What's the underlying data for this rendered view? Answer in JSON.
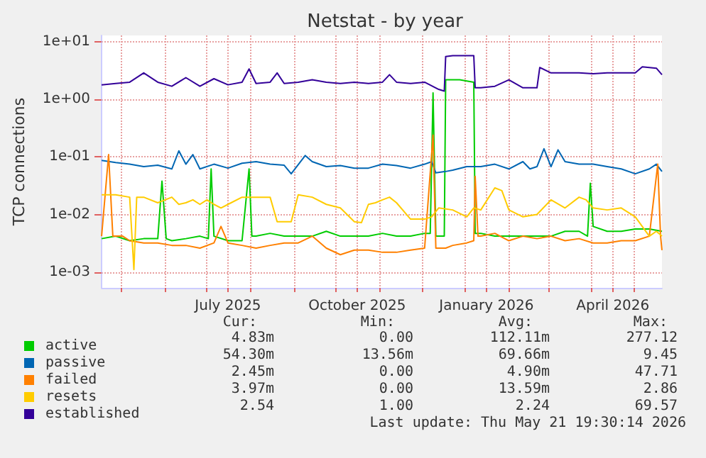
{
  "chart_data": {
    "type": "line",
    "title": "Netstat - by year",
    "ylabel": "TCP connections",
    "log": "y",
    "grid": true,
    "legend": "bottom left",
    "marker": "none",
    "line_style": "solid",
    "xlim": [
      "2025-04-17",
      "2026-05-21"
    ],
    "xticks": [
      {
        "value": "2025-05-01",
        "label": null
      },
      {
        "value": "2025-06-01",
        "label": null
      },
      {
        "value": "2025-07-01",
        "label": null
      },
      {
        "value": "2025-07-16",
        "label": "July 2025"
      },
      {
        "value": "2025-08-01",
        "label": null
      },
      {
        "value": "2025-09-01",
        "label": null
      },
      {
        "value": "2025-10-01",
        "label": null
      },
      {
        "value": "2025-10-16",
        "label": "October 2025"
      },
      {
        "value": "2025-11-01",
        "label": null
      },
      {
        "value": "2025-12-01",
        "label": null
      },
      {
        "value": "2026-01-01",
        "label": null
      },
      {
        "value": "2026-01-16",
        "label": "January 2026"
      },
      {
        "value": "2026-02-01",
        "label": null
      },
      {
        "value": "2026-03-01",
        "label": null
      },
      {
        "value": "2026-04-01",
        "label": null
      },
      {
        "value": "2026-04-16",
        "label": "April 2026"
      },
      {
        "value": "2026-05-01",
        "label": null
      }
    ],
    "ylim": [
      0.00053,
      13
    ],
    "yticks": [
      {
        "value": 0.001,
        "label": "1e-03"
      },
      {
        "value": 0.01,
        "label": "1e-02"
      },
      {
        "value": 0.1,
        "label": "1e-01"
      },
      {
        "value": 1,
        "label": "1e+00"
      },
      {
        "value": 10,
        "label": "1e+01"
      }
    ],
    "series": [
      {
        "name": "active",
        "color": "#00cc00",
        "x": [
          "2025-04-17",
          "2025-04-27",
          "2025-05-07",
          "2025-05-17",
          "2025-05-27",
          "2025-05-30",
          "2025-06-02",
          "2025-06-06",
          "2025-06-16",
          "2025-06-26",
          "2025-07-02",
          "2025-07-04",
          "2025-07-06",
          "2025-07-16",
          "2025-07-26",
          "2025-07-31",
          "2025-08-02",
          "2025-08-05",
          "2025-08-15",
          "2025-08-25",
          "2025-09-04",
          "2025-09-14",
          "2025-09-24",
          "2025-10-04",
          "2025-10-14",
          "2025-10-24",
          "2025-11-03",
          "2025-11-13",
          "2025-11-23",
          "2025-12-03",
          "2025-12-07",
          "2025-12-09",
          "2025-12-11",
          "2025-12-17",
          "2025-12-18",
          "2025-12-28",
          "2026-01-07",
          "2026-01-08",
          "2026-01-12",
          "2026-01-22",
          "2026-02-01",
          "2026-02-11",
          "2026-02-21",
          "2026-03-03",
          "2026-03-13",
          "2026-03-23",
          "2026-03-29",
          "2026-03-31",
          "2026-04-02",
          "2026-04-12",
          "2026-04-22",
          "2026-05-02",
          "2026-05-12",
          "2026-05-21"
        ],
        "values": [
          0.0038,
          0.0042,
          0.0035,
          0.0038,
          0.0038,
          0.038,
          0.0038,
          0.0035,
          0.0038,
          0.0042,
          0.0038,
          0.062,
          0.0042,
          0.0035,
          0.0035,
          0.062,
          0.0042,
          0.0042,
          0.0047,
          0.0042,
          0.0042,
          0.0042,
          0.0051,
          0.0042,
          0.0042,
          0.0042,
          0.0047,
          0.0042,
          0.0042,
          0.0047,
          0.0047,
          1.3,
          0.0042,
          0.0042,
          2.2,
          2.2,
          2.0,
          0.0047,
          0.0047,
          0.0042,
          0.0042,
          0.0042,
          0.0042,
          0.0042,
          0.0051,
          0.0051,
          0.0042,
          0.035,
          0.0062,
          0.0051,
          0.0051,
          0.0056,
          0.0056,
          0.0051
        ]
      },
      {
        "name": "passive",
        "color": "#0066b3",
        "x": [
          "2025-04-17",
          "2025-04-27",
          "2025-05-07",
          "2025-05-17",
          "2025-05-27",
          "2025-06-06",
          "2025-06-11",
          "2025-06-16",
          "2025-06-21",
          "2025-06-26",
          "2025-07-06",
          "2025-07-16",
          "2025-07-26",
          "2025-08-05",
          "2025-08-15",
          "2025-08-25",
          "2025-08-30",
          "2025-09-09",
          "2025-09-14",
          "2025-09-24",
          "2025-10-04",
          "2025-10-14",
          "2025-10-24",
          "2025-11-03",
          "2025-11-13",
          "2025-11-23",
          "2025-12-03",
          "2025-12-08",
          "2025-12-11",
          "2025-12-18",
          "2025-12-23",
          "2026-01-02",
          "2026-01-12",
          "2026-01-22",
          "2026-02-01",
          "2026-02-11",
          "2026-02-16",
          "2026-02-21",
          "2026-02-26",
          "2026-03-03",
          "2026-03-08",
          "2026-03-13",
          "2026-03-23",
          "2026-04-02",
          "2026-04-12",
          "2026-04-22",
          "2026-05-02",
          "2026-05-12",
          "2026-05-17",
          "2026-05-21"
        ],
        "values": [
          0.087,
          0.08,
          0.075,
          0.068,
          0.072,
          0.062,
          0.128,
          0.075,
          0.11,
          0.062,
          0.075,
          0.064,
          0.078,
          0.083,
          0.075,
          0.072,
          0.051,
          0.106,
          0.083,
          0.068,
          0.071,
          0.064,
          0.064,
          0.075,
          0.071,
          0.064,
          0.075,
          0.083,
          0.053,
          0.056,
          0.059,
          0.068,
          0.068,
          0.075,
          0.062,
          0.083,
          0.062,
          0.068,
          0.139,
          0.068,
          0.133,
          0.083,
          0.075,
          0.075,
          0.068,
          0.062,
          0.051,
          0.062,
          0.075,
          0.056
        ]
      },
      {
        "name": "failed",
        "color": "#ff8000",
        "x": [
          "2025-04-17",
          "2025-04-22",
          "2025-04-25",
          "2025-05-02",
          "2025-05-07",
          "2025-05-17",
          "2025-05-27",
          "2025-06-06",
          "2025-06-16",
          "2025-06-26",
          "2025-07-06",
          "2025-07-11",
          "2025-07-16",
          "2025-07-26",
          "2025-08-05",
          "2025-08-15",
          "2025-08-25",
          "2025-09-04",
          "2025-09-14",
          "2025-09-24",
          "2025-10-04",
          "2025-10-14",
          "2025-10-24",
          "2025-11-03",
          "2025-11-13",
          "2025-11-23",
          "2025-12-03",
          "2025-12-09",
          "2025-12-11",
          "2025-12-18",
          "2025-12-23",
          "2026-01-02",
          "2026-01-07",
          "2026-01-08",
          "2026-01-10",
          "2026-01-12",
          "2026-01-22",
          "2026-02-01",
          "2026-02-11",
          "2026-02-21",
          "2026-03-03",
          "2026-03-13",
          "2026-03-23",
          "2026-04-02",
          "2026-04-12",
          "2026-04-22",
          "2026-05-02",
          "2026-05-12",
          "2026-05-18",
          "2026-05-20",
          "2026-05-21"
        ],
        "values": [
          0.0042,
          0.11,
          0.0042,
          0.0042,
          0.0035,
          0.0032,
          0.0032,
          0.0029,
          0.0029,
          0.0026,
          0.0032,
          0.0062,
          0.0032,
          0.0029,
          0.0026,
          0.0029,
          0.0032,
          0.0032,
          0.0042,
          0.0026,
          0.002,
          0.0024,
          0.0024,
          0.0022,
          0.0022,
          0.0024,
          0.0026,
          0.24,
          0.0026,
          0.0026,
          0.0029,
          0.0032,
          0.0035,
          0.046,
          0.0042,
          0.0042,
          0.0047,
          0.0035,
          0.0042,
          0.0038,
          0.0042,
          0.0035,
          0.0038,
          0.0032,
          0.0032,
          0.0035,
          0.0035,
          0.0042,
          0.075,
          0.0042,
          0.0024
        ]
      },
      {
        "name": "resets",
        "color": "#ffcc00",
        "x": [
          "2025-04-17",
          "2025-04-27",
          "2025-05-07",
          "2025-05-10",
          "2025-05-12",
          "2025-05-17",
          "2025-05-27",
          "2025-06-06",
          "2025-06-11",
          "2025-06-16",
          "2025-06-21",
          "2025-06-26",
          "2025-07-01",
          "2025-07-06",
          "2025-07-11",
          "2025-07-16",
          "2025-07-26",
          "2025-08-05",
          "2025-08-15",
          "2025-08-20",
          "2025-08-25",
          "2025-08-30",
          "2025-09-04",
          "2025-09-14",
          "2025-09-24",
          "2025-10-04",
          "2025-10-14",
          "2025-10-19",
          "2025-10-24",
          "2025-10-29",
          "2025-11-03",
          "2025-11-08",
          "2025-11-13",
          "2025-11-23",
          "2025-12-03",
          "2025-12-08",
          "2025-12-13",
          "2025-12-23",
          "2026-01-02",
          "2026-01-07",
          "2026-01-12",
          "2026-01-22",
          "2026-01-27",
          "2026-02-01",
          "2026-02-11",
          "2026-02-21",
          "2026-03-03",
          "2026-03-13",
          "2026-03-23",
          "2026-03-28",
          "2026-04-02",
          "2026-04-12",
          "2026-04-22",
          "2026-05-02",
          "2026-05-12",
          "2026-05-17",
          "2026-05-21"
        ],
        "values": [
          0.022,
          0.022,
          0.02,
          0.0011,
          0.02,
          0.02,
          0.016,
          0.02,
          0.015,
          0.016,
          0.018,
          0.015,
          0.018,
          0.015,
          0.013,
          0.015,
          0.02,
          0.02,
          0.02,
          0.0075,
          0.0075,
          0.0075,
          0.022,
          0.02,
          0.015,
          0.013,
          0.0075,
          0.0072,
          0.015,
          0.016,
          0.018,
          0.02,
          0.016,
          0.0083,
          0.0083,
          0.0091,
          0.013,
          0.012,
          0.0091,
          0.013,
          0.012,
          0.029,
          0.026,
          0.012,
          0.0091,
          0.01,
          0.018,
          0.013,
          0.02,
          0.018,
          0.013,
          0.012,
          0.013,
          0.0091,
          0.0042,
          0.0051,
          0.0042
        ]
      },
      {
        "name": "established",
        "color": "#330099",
        "x": [
          "2025-04-17",
          "2025-04-27",
          "2025-05-07",
          "2025-05-17",
          "2025-05-27",
          "2025-06-06",
          "2025-06-16",
          "2025-06-26",
          "2025-07-06",
          "2025-07-16",
          "2025-07-26",
          "2025-07-31",
          "2025-08-05",
          "2025-08-15",
          "2025-08-20",
          "2025-08-25",
          "2025-09-04",
          "2025-09-14",
          "2025-09-24",
          "2025-10-04",
          "2025-10-14",
          "2025-10-24",
          "2025-11-03",
          "2025-11-08",
          "2025-11-13",
          "2025-11-23",
          "2025-12-03",
          "2025-12-13",
          "2025-12-17",
          "2025-12-18",
          "2025-12-23",
          "2026-01-02",
          "2026-01-07",
          "2026-01-08",
          "2026-01-12",
          "2026-01-22",
          "2026-02-01",
          "2026-02-11",
          "2026-02-21",
          "2026-02-23",
          "2026-03-03",
          "2026-03-13",
          "2026-03-23",
          "2026-04-02",
          "2026-04-12",
          "2026-04-22",
          "2026-05-02",
          "2026-05-07",
          "2026-05-17",
          "2026-05-21"
        ],
        "values": [
          1.8,
          1.9,
          2.0,
          2.9,
          2.0,
          1.7,
          2.4,
          1.7,
          2.3,
          1.8,
          2.0,
          3.4,
          1.9,
          2.0,
          2.9,
          1.9,
          2.0,
          2.2,
          2.0,
          1.9,
          2.0,
          1.9,
          2.0,
          2.7,
          2.0,
          1.9,
          2.0,
          1.5,
          1.4,
          5.6,
          5.8,
          5.8,
          5.8,
          1.6,
          1.6,
          1.7,
          2.2,
          1.6,
          1.6,
          3.6,
          2.9,
          2.9,
          2.9,
          2.8,
          2.9,
          2.9,
          2.9,
          3.7,
          3.5,
          2.7
        ]
      }
    ],
    "annotations": [
      "Cur:",
      "Min:",
      "Avg:",
      "Max:",
      "4.83m",
      "0.00",
      "112.11m",
      "277.12",
      "54.30m",
      "13.56m",
      "69.66m",
      "9.45",
      "2.45m",
      "0.00",
      "4.90m",
      "47.71",
      "3.97m",
      "0.00",
      "13.59m",
      "2.86",
      "2.54",
      "1.00",
      "2.24",
      "69.57",
      "Last update: Thu May 21 19:30:14 2026"
    ]
  }
}
